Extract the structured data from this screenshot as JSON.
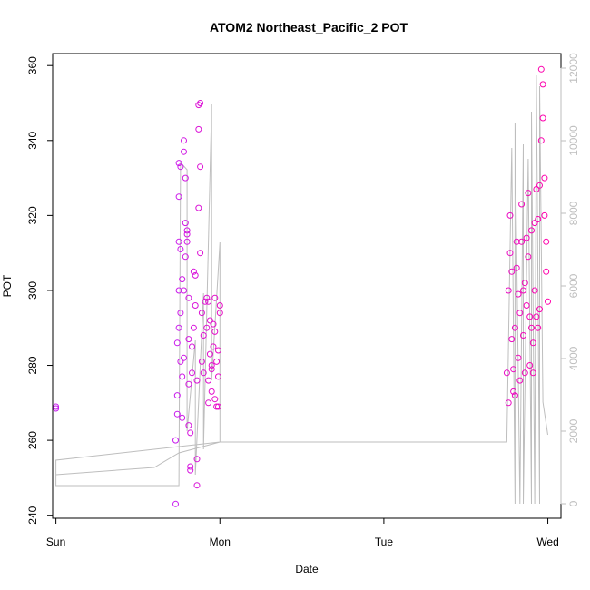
{
  "chart_data": {
    "type": "scatter",
    "title": "ATOM2 Northeast_Pacific_2 POT",
    "xlabel": "Date",
    "ylabel": "POT",
    "x_ticks": [
      "Sun",
      "Mon",
      "Tue",
      "Wed"
    ],
    "x_range": [
      -0.02,
      3.08
    ],
    "ylim": [
      239.2,
      363.2
    ],
    "y_ticks": [
      240,
      260,
      280,
      300,
      320,
      340,
      360
    ],
    "y2lim": [
      -400,
      12400
    ],
    "y2_ticks": [
      0,
      2000,
      4000,
      6000,
      8000,
      10000,
      12000
    ],
    "grid": false,
    "legend": "none",
    "colors": {
      "left_points_start": "#c71cf0",
      "right_points_end": "#ff00aa",
      "secondary_line": "#bebebe",
      "secondary_axis": "#bebebe"
    },
    "series": [
      {
        "kind": "points",
        "x": [
          0.0,
          0.0,
          0.73,
          0.73,
          0.74,
          0.74,
          0.74,
          0.75,
          0.75,
          0.75,
          0.75,
          0.75,
          0.76,
          0.76,
          0.76,
          0.76,
          0.77,
          0.77,
          0.77,
          0.78,
          0.78,
          0.78,
          0.78,
          0.79,
          0.79,
          0.79,
          0.8,
          0.8,
          0.8,
          0.81,
          0.81,
          0.81,
          0.81,
          0.82,
          0.82,
          0.82,
          0.83,
          0.83,
          0.84,
          0.84,
          0.85,
          0.85,
          0.86,
          0.86,
          0.86,
          0.87,
          0.87,
          0.87,
          0.88,
          0.88,
          0.88,
          0.89,
          0.89,
          0.9,
          0.9,
          0.91,
          0.92,
          0.92,
          0.93,
          0.93,
          0.93,
          0.94,
          0.94,
          0.95,
          0.95,
          0.95,
          0.96,
          0.96,
          0.97,
          0.97,
          0.97,
          0.98,
          0.98,
          0.99,
          0.99,
          0.99,
          1.0,
          1.0,
          2.75,
          2.76,
          2.76,
          2.77,
          2.77,
          2.78,
          2.78,
          2.79,
          2.79,
          2.8,
          2.8,
          2.81,
          2.81,
          2.82,
          2.82,
          2.83,
          2.83,
          2.84,
          2.84,
          2.85,
          2.85,
          2.86,
          2.86,
          2.87,
          2.87,
          2.88,
          2.88,
          2.89,
          2.89,
          2.9,
          2.9,
          2.91,
          2.91,
          2.92,
          2.92,
          2.93,
          2.93,
          2.94,
          2.94,
          2.95,
          2.95,
          2.96,
          2.96,
          2.97,
          2.97,
          2.98,
          2.98,
          2.99,
          2.99,
          3.0
        ],
        "y": [
          268.5,
          269.0,
          243.0,
          260.0,
          267.0,
          272.0,
          286.0,
          290.0,
          300.0,
          313.0,
          325.0,
          334.0,
          333.0,
          311.0,
          294.0,
          281.0,
          277.0,
          266.0,
          303.0,
          282.0,
          300.0,
          337.0,
          340.0,
          330.0,
          318.0,
          309.0,
          316.0,
          313.0,
          315.0,
          298.0,
          287.0,
          275.0,
          264.0,
          252.0,
          253.0,
          262.0,
          278.0,
          285.0,
          290.0,
          305.0,
          304.0,
          296.0,
          255.0,
          248.0,
          276.0,
          322.0,
          343.0,
          349.5,
          350.0,
          333.0,
          310.0,
          294.0,
          281.0,
          278.0,
          288.0,
          297.0,
          290.0,
          298.0,
          276.0,
          297.0,
          270.0,
          283.0,
          292.0,
          279.0,
          273.0,
          280.0,
          291.0,
          285.0,
          298.0,
          289.0,
          271.0,
          269.0,
          281.0,
          277.0,
          284.0,
          269.0,
          294.0,
          296.0,
          278.0,
          270.0,
          300.0,
          310.0,
          320.0,
          305.0,
          287.0,
          273.0,
          279.0,
          272.0,
          290.0,
          306.0,
          313.0,
          299.0,
          282.0,
          276.0,
          294.0,
          323.0,
          313.0,
          300.0,
          288.0,
          278.0,
          302.0,
          296.0,
          314.0,
          326.0,
          309.0,
          293.0,
          280.0,
          316.0,
          290.0,
          286.0,
          278.0,
          318.0,
          300.0,
          293.0,
          327.0,
          290.0,
          319.0,
          328.0,
          295.0,
          340.0,
          359.0,
          355.0,
          346.0,
          330.0,
          320.0,
          313.0,
          305.0,
          297.0
        ]
      },
      {
        "kind": "line",
        "axis": "right",
        "x": [
          0.0,
          0.6,
          0.75,
          1.0,
          0.0,
          0.0,
          0.75,
          0.76,
          0.8,
          0.8,
          0.85,
          0.85,
          0.9,
          0.9,
          0.95,
          0.95,
          1.0,
          1.0,
          2.75,
          2.78,
          2.8,
          2.8,
          2.83,
          2.85,
          2.85,
          2.88,
          2.9,
          2.9,
          2.92,
          2.93,
          2.95,
          2.95,
          2.97,
          3.0
        ],
        "y": [
          800,
          1000,
          1400,
          1700,
          1200,
          500,
          500,
          9400,
          9200,
          2000,
          4500,
          800,
          5800,
          1500,
          11000,
          3400,
          7200,
          1700,
          1700,
          9800,
          0,
          10500,
          0,
          9900,
          0,
          9500,
          0,
          10800,
          0,
          11800,
          0,
          11500,
          2800,
          1900
        ]
      }
    ]
  }
}
